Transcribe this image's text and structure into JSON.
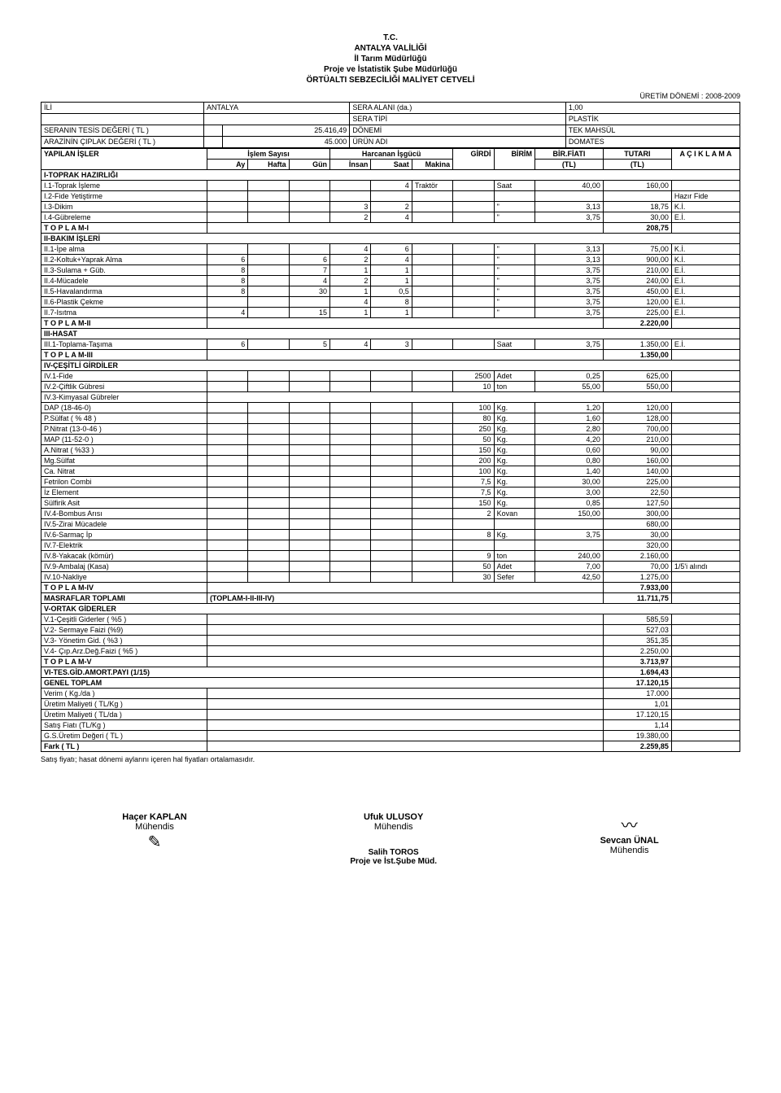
{
  "header": {
    "l1": "T.C.",
    "l2": "ANTALYA VALİLİĞİ",
    "l3": "İl Tarım Müdürlüğü",
    "l4": "Proje ve İstatistik Şube Müdürlüğü",
    "l5": "ÖRTÜALTI SEBZECİLİĞİ MALİYET CETVELİ"
  },
  "donem_label": "ÜRETİM DÖNEMİ :",
  "donem": "2008-2009",
  "info": {
    "ili_lbl": "İLİ",
    "ili": "ANTALYA",
    "sera_alani_lbl": "SERA ALANI (da.)",
    "sera_alani": "1,00",
    "sera_tipi_lbl": "SERA TİPİ",
    "sera_tipi": "PLASTİK",
    "tesis_lbl": "SERANIN TESİS DEĞERİ ( TL )",
    "tesis": "25.416,49",
    "donemi_lbl": "DÖNEMİ",
    "donemi": "TEK MAHSÜL",
    "arazi_lbl": "ARAZİNİN ÇIPLAK DEĞERİ ( TL )",
    "arazi": "45.000",
    "urun_lbl": "ÜRÜN ADI",
    "urun": "DOMATES"
  },
  "cols": {
    "yapilan": "YAPILAN İŞLER",
    "islem": "İşlem Sayısı",
    "ay": "Ay",
    "hafta": "Hafta",
    "gun": "Gün",
    "harcanan": "Harcanan İşgücü",
    "insan": "İnsan",
    "saat": "Saat",
    "makina": "Makina",
    "girdi": "GİRDİ",
    "birim": "BİRİM",
    "birfiat": "BİR.FİATI",
    "tl1": "(TL)",
    "tutari": "TUTARI",
    "tl2": "(TL)",
    "aciklama": "A Ç I K L A M A"
  },
  "sections": {
    "s1": "I-TOPRAK HAZIRLIĞI",
    "s2": "II-BAKIM İŞLERİ",
    "s3": "III-HASAT",
    "s4": "IV-ÇEŞİTLİ GİRDİLER",
    "s5": "V-ORTAK GİDERLER",
    "t1": "T O P L A M-I",
    "t2": "T O P L A M-II",
    "t3": "T O P L A M-III",
    "t4": "T O P L A M-IV",
    "t5": "T O P L A M-V",
    "masraf": "MASRAFLAR TOPLAMI",
    "masraf_note": "(TOPLAM-I-II-III-IV)",
    "vi": "VI-TES.GİD.AMORT.PAYI (1/15)",
    "genel": "GENEL TOPLAM"
  },
  "rows": {
    "r11": {
      "n": "I.1-Toprak İşleme",
      "saat": "4",
      "makina": "Traktör",
      "birim": "Saat",
      "fiat": "40,00",
      "tutar": "160,00"
    },
    "r12": {
      "n": "I.2-Fide Yetiştirme",
      "acik": "Hazır Fide"
    },
    "r13": {
      "n": "I.3-Dikim",
      "insan": "3",
      "saat": "2",
      "birim": "\"",
      "fiat": "3,13",
      "tutar": "18,75",
      "acik": "K.İ."
    },
    "r14": {
      "n": "I.4-Gübreleme",
      "insan": "2",
      "saat": "4",
      "birim": "\"",
      "fiat": "3,75",
      "tutar": "30,00",
      "acik": "E.İ."
    },
    "t1_tutar": "208,75",
    "r21": {
      "n": "II.1-İpe alma",
      "insan": "4",
      "saat": "6",
      "birim": "\"",
      "fiat": "3,13",
      "tutar": "75,00",
      "acik": "K.İ."
    },
    "r22": {
      "n": "II.2-Koltuk+Yaprak Alma",
      "ay": "6",
      "insan": "6",
      "harc_insan": "2",
      "saat": "4",
      "birim": "\"",
      "fiat": "3,13",
      "tutar": "900,00",
      "acik": "K.İ."
    },
    "r23": {
      "n": "II.3-Sulama + Güb.",
      "ay": "8",
      "insan": "7",
      "harc_insan": "1",
      "saat": "1",
      "birim": "\"",
      "fiat": "3,75",
      "tutar": "210,00",
      "acik": "E.İ."
    },
    "r24": {
      "n": "II.4-Mücadele",
      "ay": "8",
      "insan": "4",
      "harc_insan": "2",
      "saat": "1",
      "birim": "\"",
      "fiat": "3,75",
      "tutar": "240,00",
      "acik": "E.İ."
    },
    "r25": {
      "n": "II.5-Havalandırma",
      "ay": "8",
      "insan": "30",
      "harc_insan": "1",
      "saat": "0,5",
      "birim": "\"",
      "fiat": "3,75",
      "tutar": "450,00",
      "acik": "E.İ."
    },
    "r26": {
      "n": "II.6-Plastik Çekme",
      "insan": "4",
      "saat": "8",
      "birim": "\"",
      "fiat": "3,75",
      "tutar": "120,00",
      "acik": "E.İ."
    },
    "r27": {
      "n": "II.7-Isıtma",
      "ay": "4",
      "insan": "15",
      "harc_insan": "1",
      "saat": "1",
      "birim": "\"",
      "fiat": "3,75",
      "tutar": "225,00",
      "acik": "E.İ."
    },
    "t2_tutar": "2.220,00",
    "r31": {
      "n": "III.1-Toplama-Taşıma",
      "ay": "6",
      "insan": "5",
      "harc_insan": "4",
      "saat": "3",
      "birim": "Saat",
      "fiat": "3,75",
      "tutar": "1.350,00",
      "acik": "E.İ."
    },
    "t3_tutar": "1.350,00",
    "r41": {
      "n": "IV.1-Fide",
      "girdi": "2500",
      "birim": "Adet",
      "fiat": "0,25",
      "tutar": "625,00"
    },
    "r42": {
      "n": "IV.2-Çiftlik Gübresi",
      "girdi": "10",
      "birim": "ton",
      "fiat": "55,00",
      "tutar": "550,00"
    },
    "r43": {
      "n": "IV.3-Kimyasal Gübreler"
    },
    "r43a": {
      "n": "   DAP (18-46-0)",
      "girdi": "100",
      "birim": "Kg.",
      "fiat": "1,20",
      "tutar": "120,00"
    },
    "r43b": {
      "n": "   P.Sülfat ( % 48 )",
      "girdi": "80",
      "birim": "Kg.",
      "fiat": "1,60",
      "tutar": "128,00"
    },
    "r43c": {
      "n": "   P.Nitrat (13-0-46 )",
      "girdi": "250",
      "birim": "Kg.",
      "fiat": "2,80",
      "tutar": "700,00"
    },
    "r43d": {
      "n": "   MAP (11-52-0 )",
      "girdi": "50",
      "birim": "Kg.",
      "fiat": "4,20",
      "tutar": "210,00"
    },
    "r43e": {
      "n": "   A.Nitrat ( %33 )",
      "girdi": "150",
      "birim": "Kg.",
      "fiat": "0,60",
      "tutar": "90,00"
    },
    "r43f": {
      "n": "   Mg.Sülfat",
      "girdi": "200",
      "birim": "Kg.",
      "fiat": "0,80",
      "tutar": "160,00"
    },
    "r43g": {
      "n": "   Ca. Nitrat",
      "girdi": "100",
      "birim": "Kg.",
      "fiat": "1,40",
      "tutar": "140,00"
    },
    "r43h": {
      "n": "   Fetrilon Combi",
      "girdi": "7,5",
      "birim": "Kg.",
      "fiat": "30,00",
      "tutar": "225,00"
    },
    "r43i": {
      "n": "   İz Element",
      "girdi": "7,5",
      "birim": "Kg.",
      "fiat": "3,00",
      "tutar": "22,50"
    },
    "r43j": {
      "n": "   Sülfirik Asit",
      "girdi": "150",
      "birim": "Kg.",
      "fiat": "0,85",
      "tutar": "127,50"
    },
    "r44": {
      "n": "IV.4-Bombus Arısı",
      "girdi": "2",
      "birim": "Kovan",
      "fiat": "150,00",
      "tutar": "300,00"
    },
    "r45": {
      "n": "IV.5-Zirai Mücadele",
      "tutar": "680,00"
    },
    "r46": {
      "n": "IV.6-Sarmaç İp",
      "girdi": "8",
      "birim": "Kg.",
      "fiat": "3,75",
      "tutar": "30,00"
    },
    "r47": {
      "n": "IV.7-Elektrik",
      "tutar": "320,00"
    },
    "r48": {
      "n": "IV.8-Yakacak (kömür)",
      "girdi": "9",
      "birim": "ton",
      "fiat": "240,00",
      "tutar": "2.160,00"
    },
    "r49": {
      "n": "IV.9-Ambalaj (Kasa)",
      "girdi": "50",
      "birim": "Adet",
      "fiat": "7,00",
      "tutar": "70,00",
      "acik": "1/5'i alındı"
    },
    "r410": {
      "n": "IV.10-Nakliye",
      "girdi": "30",
      "birim": "Sefer",
      "fiat": "42,50",
      "tutar": "1.275,00"
    },
    "t4_tutar": "7.933,00",
    "masraf_tutar": "11.711,75",
    "r51": {
      "n": "V.1-Çeşitli Giderler  ( %5 )",
      "tutar": "585,59"
    },
    "r52": {
      "n": "V.2- Sermaye Faizi (%9)",
      "tutar": "527,03"
    },
    "r53": {
      "n": "V.3- Yönetim Gid.  ( %3 )",
      "tutar": "351,35"
    },
    "r54": {
      "n": "V.4- Çıp.Arz.Değ.Faizi ( %5 )",
      "tutar": "2.250,00"
    },
    "t5_tutar": "3.713,97",
    "vi_tutar": "1.694,43",
    "genel_tutar": "17.120,15",
    "verim": {
      "n": "Verim    ( Kg./da )",
      "tutar": "17.000"
    },
    "um1": {
      "n": "Üretim Maliyeti   ( TL/Kg )",
      "tutar": "1,01"
    },
    "um2": {
      "n": "Üretim Maliyeti   ( TL/da )",
      "tutar": "17.120,15"
    },
    "satis": {
      "n": "Satış Fiatı   (TL/Kg )",
      "tutar": "1,14"
    },
    "gs": {
      "n": "G.S.Üretim Değeri   ( TL )",
      "tutar": "19.380,00"
    },
    "fark": {
      "n": "Fark   ( TL )",
      "tutar": "2.259,85"
    }
  },
  "footnote": "Satış fiyatı; hasat dönemi aylarını içeren hal fiyatları ortalamasıdır.",
  "sigs": {
    "s1n": "Haçer KAPLAN",
    "s1t": "Mühendis",
    "s2n": "Ufuk ULUSOY",
    "s2t": "Mühendis",
    "s3n": "Sevcan ÜNAL",
    "s3t": "Mühendis",
    "stamp1": "Salih TOROS",
    "stamp2": "Proje ve İst.Şube Müd."
  }
}
